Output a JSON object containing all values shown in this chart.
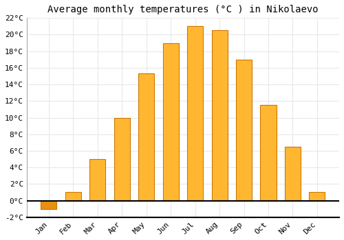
{
  "title": "Average monthly temperatures (°C ) in Nikolaevo",
  "months": [
    "Jan",
    "Feb",
    "Mar",
    "Apr",
    "May",
    "Jun",
    "Jul",
    "Aug",
    "Sep",
    "Oct",
    "Nov",
    "Dec"
  ],
  "temperatures": [
    -1.0,
    1.0,
    5.0,
    10.0,
    15.3,
    19.0,
    21.0,
    20.5,
    17.0,
    11.5,
    6.5,
    1.0
  ],
  "bar_color_pos": "#FFB732",
  "bar_color_neg": "#E89010",
  "bar_edge_color": "#CC7700",
  "ylim": [
    -2,
    22
  ],
  "yticks": [
    -2,
    0,
    2,
    4,
    6,
    8,
    10,
    12,
    14,
    16,
    18,
    20,
    22
  ],
  "ytick_labels": [
    "-2°C",
    "0°C",
    "2°C",
    "4°C",
    "6°C",
    "8°C",
    "10°C",
    "12°C",
    "14°C",
    "16°C",
    "18°C",
    "20°C",
    "22°C"
  ],
  "background_color": "#ffffff",
  "plot_bg_color": "#ffffff",
  "grid_color": "#e8e8e8",
  "title_fontsize": 10,
  "tick_fontsize": 8,
  "font_family": "monospace"
}
